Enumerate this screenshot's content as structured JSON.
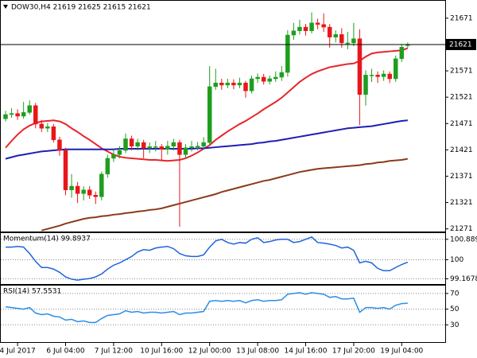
{
  "chart_data": [
    {
      "type": "candlestick",
      "title": "DOW30,H4  21619 21625 21615 21621",
      "categories": [
        null,
        null,
        "4 Jul 2017",
        null,
        null,
        null,
        null,
        null,
        null,
        null,
        "6 Jul 04:00",
        null,
        null,
        null,
        null,
        null,
        null,
        null,
        "7 Jul 12:00",
        null,
        null,
        null,
        null,
        null,
        null,
        null,
        "10 Jul 16:00",
        null,
        null,
        null,
        null,
        null,
        null,
        null,
        "12 Jul 00:00",
        null,
        null,
        null,
        null,
        null,
        null,
        null,
        "13 Jul 08:00",
        null,
        null,
        null,
        null,
        null,
        null,
        null,
        "14 Jul 16:00",
        null,
        null,
        null,
        null,
        null,
        null,
        null,
        "17 Jul 20:00",
        null,
        null,
        null,
        null,
        null,
        null,
        null,
        "19 Jul 04:00",
        null
      ],
      "open": [
        21480,
        21488,
        21490,
        21485,
        21492,
        21505,
        21470,
        21462,
        21465,
        21440,
        21420,
        21345,
        21352,
        21338,
        21345,
        21335,
        21332,
        21375,
        21405,
        21412,
        21420,
        21442,
        21428,
        21435,
        21424,
        21427,
        21427,
        21422,
        21428,
        21435,
        21412,
        21425,
        21427,
        21428,
        21435,
        21541,
        21548,
        21544,
        21548,
        21544,
        21548,
        21533,
        21556,
        21559,
        21551,
        21556,
        21559,
        21568,
        21639,
        21647,
        21654,
        21647,
        21662,
        21659,
        21654,
        21635,
        21640,
        21624,
        21624,
        21632,
        21526,
        21563,
        21563,
        21560,
        21565,
        21556,
        21594,
        21619
      ],
      "high": [
        21495,
        21500,
        21498,
        21512,
        21515,
        21510,
        21478,
        21472,
        21470,
        21446,
        21425,
        21375,
        21360,
        21352,
        21352,
        21342,
        21380,
        21412,
        21420,
        21428,
        21452,
        21448,
        21442,
        21440,
        21435,
        21438,
        21432,
        21438,
        21442,
        21440,
        21432,
        21438,
        21436,
        21445,
        21580,
        21575,
        21556,
        21556,
        21555,
        21558,
        21552,
        21562,
        21566,
        21565,
        21562,
        21570,
        21580,
        21648,
        21662,
        21668,
        21660,
        21682,
        21670,
        21680,
        21660,
        21648,
        21652,
        21645,
        21662,
        21650,
        21572,
        21575,
        21570,
        21572,
        21570,
        21600,
        21622,
        21625
      ],
      "low": [
        21475,
        21482,
        21478,
        21480,
        21488,
        21462,
        21455,
        21455,
        21435,
        21410,
        21335,
        21330,
        21320,
        21325,
        21328,
        21318,
        21325,
        21368,
        21398,
        21405,
        21415,
        21420,
        21420,
        21405,
        21415,
        21418,
        21400,
        21412,
        21420,
        21275,
        21405,
        21418,
        21420,
        21422,
        21430,
        21535,
        21535,
        21538,
        21536,
        21538,
        21520,
        21528,
        21548,
        21545,
        21545,
        21550,
        21552,
        21560,
        21630,
        21640,
        21638,
        21642,
        21650,
        21645,
        21615,
        21625,
        21615,
        21612,
        21618,
        21468,
        21505,
        21550,
        21548,
        21552,
        21548,
        21550,
        21588,
        21615
      ],
      "close": [
        21488,
        21490,
        21485,
        21492,
        21505,
        21470,
        21462,
        21465,
        21440,
        21420,
        21345,
        21352,
        21338,
        21345,
        21335,
        21332,
        21375,
        21405,
        21412,
        21420,
        21442,
        21428,
        21435,
        21424,
        21427,
        21427,
        21422,
        21428,
        21435,
        21412,
        21425,
        21427,
        21428,
        21435,
        21541,
        21548,
        21544,
        21548,
        21544,
        21548,
        21533,
        21556,
        21559,
        21551,
        21556,
        21559,
        21568,
        21639,
        21647,
        21654,
        21647,
        21662,
        21659,
        21654,
        21635,
        21640,
        21624,
        21624,
        21632,
        21526,
        21563,
        21563,
        21560,
        21565,
        21556,
        21594,
        21616,
        21621
      ],
      "up_color": "#1e9e1e",
      "down_color": "#e8161b",
      "lines": [
        {
          "color": "#e8252a",
          "values": [
            21425,
            21438,
            21450,
            21460,
            21467,
            21472,
            21475,
            21476,
            21477,
            21475,
            21470,
            21462,
            21455,
            21447,
            21440,
            21432,
            21424,
            21418,
            21412,
            21408,
            21406,
            21405,
            21404,
            21403,
            21402,
            21402,
            21401,
            21400,
            21401,
            21402,
            21405,
            21410,
            21416,
            21423,
            21430,
            21440,
            21448,
            21456,
            21463,
            21470,
            21476,
            21483,
            21490,
            21498,
            21505,
            21512,
            21520,
            21530,
            21540,
            21550,
            21558,
            21565,
            21570,
            21574,
            21578,
            21580,
            21582,
            21584,
            21585,
            21590,
            21598,
            21604,
            21606,
            21607,
            21608,
            21609,
            21610,
            21614
          ]
        },
        {
          "color": "#1f1fb4",
          "values": [
            21404,
            21407,
            21410,
            21412,
            21414,
            21416,
            21418,
            21419,
            21420,
            21421,
            21422,
            21422,
            21422,
            21422,
            21422,
            21422,
            21422,
            21422,
            21422,
            21423,
            21423,
            21423,
            21423,
            21423,
            21423,
            21423,
            21423,
            21423,
            21423,
            21423,
            21423,
            21423,
            21424,
            21424,
            21425,
            21426,
            21427,
            21428,
            21429,
            21430,
            21431,
            21432,
            21434,
            21435,
            21437,
            21438,
            21440,
            21442,
            21444,
            21446,
            21448,
            21450,
            21452,
            21454,
            21456,
            21458,
            21460,
            21462,
            21463,
            21464,
            21465,
            21466,
            21468,
            21470,
            21472,
            21474,
            21476,
            21477
          ]
        },
        {
          "color": "#8b3a1a",
          "values": [
            null,
            null,
            null,
            null,
            null,
            null,
            21268,
            21271,
            21274,
            21277,
            21281,
            21284,
            21287,
            21290,
            21292,
            21293,
            21295,
            21296,
            21298,
            21299,
            21301,
            21302,
            21304,
            21305,
            21307,
            21308,
            21310,
            21313,
            21316,
            21319,
            21322,
            21325,
            21328,
            21331,
            21334,
            21337,
            21341,
            21344,
            21347,
            21350,
            21353,
            21356,
            21359,
            21362,
            21364,
            21367,
            21370,
            21373,
            21376,
            21379,
            21381,
            21383,
            21385,
            21386,
            21387,
            21388,
            21389,
            21390,
            21391,
            21392,
            21394,
            21395,
            21397,
            21398,
            21400,
            21401,
            21402,
            21404
          ]
        }
      ],
      "last_price": 21621,
      "ylim": [
        21266,
        21704
      ],
      "yticks": [
        21671,
        21571,
        21521,
        21471,
        21421,
        21371,
        21321,
        21271
      ],
      "grid": false
    },
    {
      "type": "line",
      "title": "Momentum(14) 99.8937",
      "color": "#1e64dc",
      "values": [
        100.55,
        100.55,
        100.58,
        100.55,
        100.27,
        99.93,
        99.66,
        99.66,
        99.59,
        99.45,
        99.25,
        99.15,
        99.11,
        99.15,
        99.18,
        99.25,
        99.38,
        99.59,
        99.76,
        99.86,
        100,
        100.14,
        100.34,
        100.44,
        100.41,
        100.51,
        100.55,
        100.58,
        100.48,
        100.27,
        100.17,
        100.14,
        100.14,
        100.21,
        100.55,
        100.82,
        100.89,
        100.75,
        100.68,
        100.75,
        100.72,
        100.89,
        100.96,
        100.75,
        100.79,
        100.86,
        100.89,
        100.89,
        100.75,
        100.79,
        100.89,
        100.99,
        100.75,
        100.72,
        100.68,
        100.62,
        100.51,
        100.55,
        100.41,
        99.86,
        99.93,
        99.86,
        99.62,
        99.52,
        99.52,
        99.66,
        99.79,
        99.8937
      ],
      "ylim": [
        98.94,
        101.16
      ],
      "yticks": [
        100.8893,
        100,
        99.1678
      ],
      "grid": true
    },
    {
      "type": "line",
      "title": "RSI(14) 57.5531",
      "color": "#2a8ee8",
      "values": [
        53,
        52,
        51,
        50,
        52,
        45,
        43,
        44,
        41,
        40,
        36,
        37,
        34,
        35,
        33,
        33,
        38,
        42,
        43,
        44,
        48,
        46,
        47,
        45,
        46,
        46,
        45,
        46,
        47,
        43,
        45,
        45,
        46,
        47,
        60,
        61,
        60,
        61,
        60,
        61,
        58,
        61,
        62,
        60,
        61,
        61,
        62,
        69,
        70,
        71,
        69,
        71,
        70,
        69,
        65,
        66,
        63,
        63,
        64,
        46,
        52,
        52,
        51,
        52,
        50,
        55,
        57,
        57.5531
      ],
      "ylim": [
        8,
        80
      ],
      "yticks": [
        70,
        50,
        30
      ],
      "grid": true
    }
  ]
}
